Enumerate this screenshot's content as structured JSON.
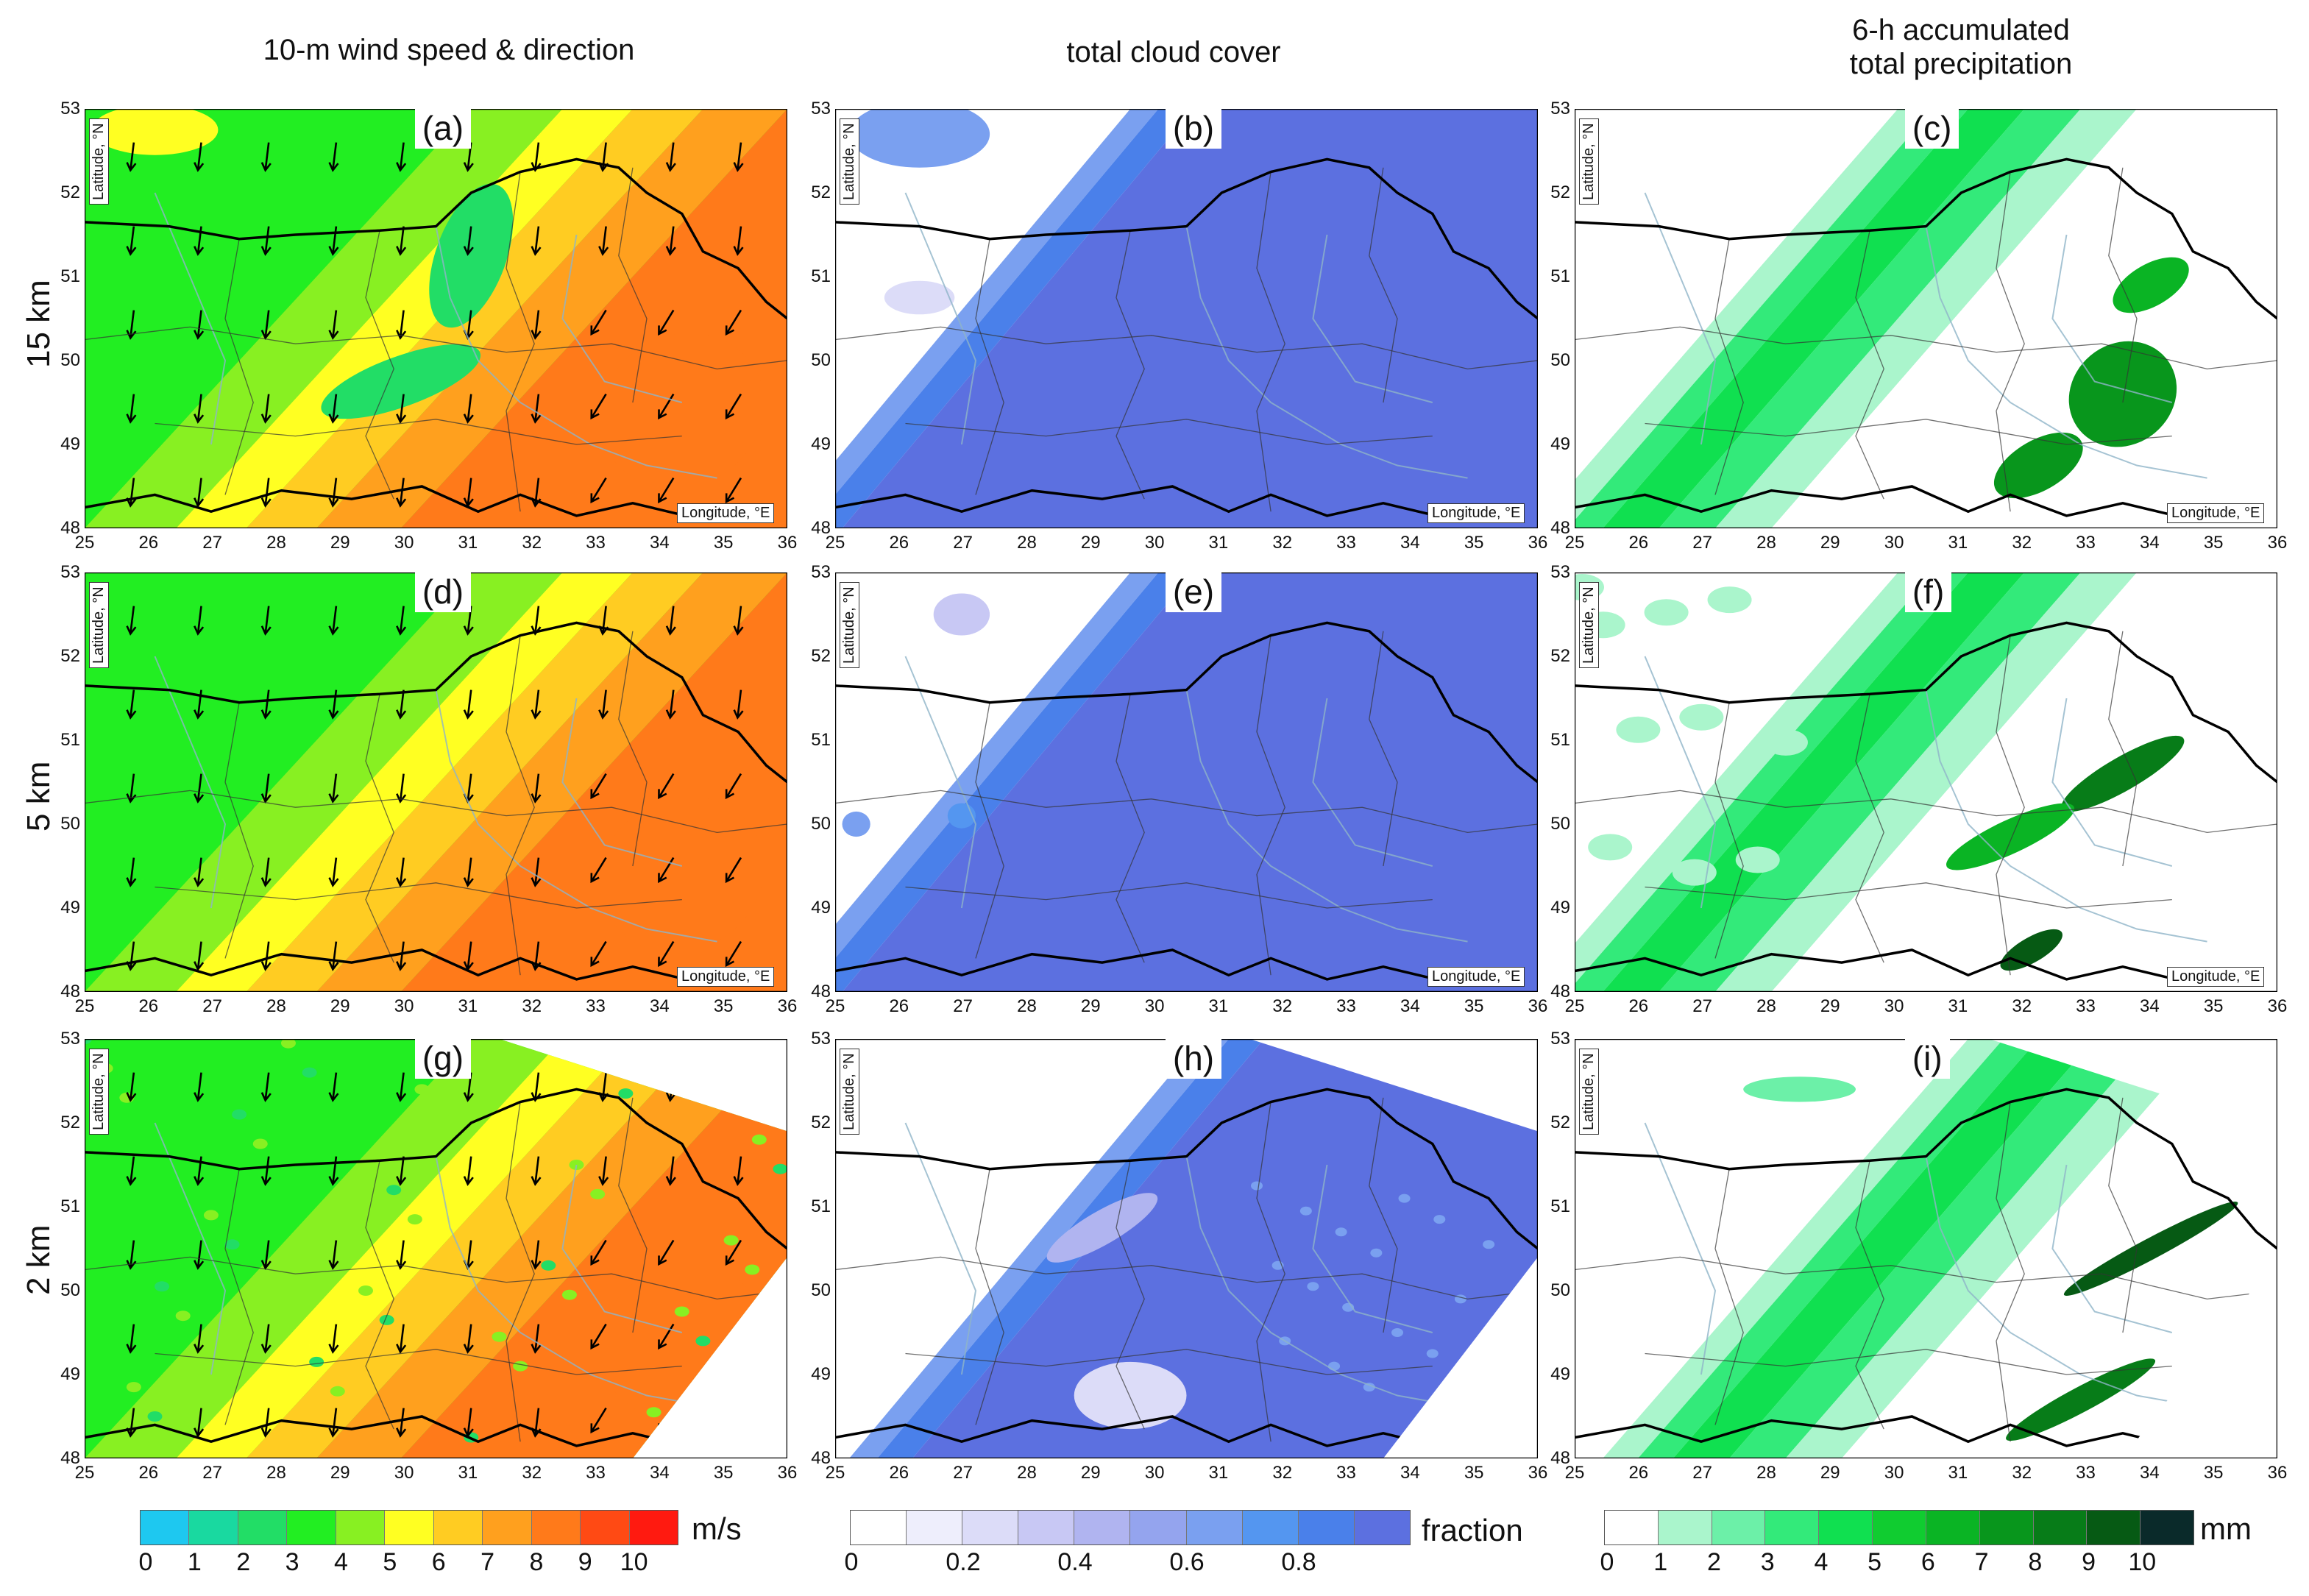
{
  "columns": [
    {
      "title": "10-m wind speed & direction"
    },
    {
      "title": "total cloud cover"
    },
    {
      "title_line1": "6-h accumulated",
      "title_line2": "total precipitation"
    }
  ],
  "rows": [
    "15 km",
    "5 km",
    "2 km"
  ],
  "panels": [
    {
      "label": "(a)",
      "var": "wind",
      "res": "15 km"
    },
    {
      "label": "(b)",
      "var": "cloud",
      "res": "15 km"
    },
    {
      "label": "(c)",
      "var": "precip",
      "res": "15 km"
    },
    {
      "label": "(d)",
      "var": "wind",
      "res": "5 km"
    },
    {
      "label": "(e)",
      "var": "cloud",
      "res": "5 km"
    },
    {
      "label": "(f)",
      "var": "precip",
      "res": "5 km"
    },
    {
      "label": "(g)",
      "var": "wind",
      "res": "2 km"
    },
    {
      "label": "(h)",
      "var": "cloud",
      "res": "2 km"
    },
    {
      "label": "(i)",
      "var": "precip",
      "res": "2 km"
    }
  ],
  "axes": {
    "xlabel": "Longitude, °E",
    "ylabel": "Latitude, °N",
    "xticks": [
      "25",
      "26",
      "27",
      "28",
      "29",
      "30",
      "31",
      "32",
      "33",
      "34",
      "35",
      "36"
    ],
    "yticks": [
      "48",
      "49",
      "50",
      "51",
      "52",
      "53"
    ]
  },
  "colorbars": {
    "wind": {
      "unit": "m/s",
      "ticks": [
        "0",
        "1",
        "2",
        "3",
        "4",
        "5",
        "6",
        "7",
        "8",
        "9",
        "10"
      ],
      "colors": [
        "#1ec8f0",
        "#19d9a0",
        "#22dd66",
        "#22ee22",
        "#88f022",
        "#ffff22",
        "#ffcc22",
        "#ffa01e",
        "#ff7a1a",
        "#ff4a14",
        "#ff1a10"
      ]
    },
    "cloud": {
      "unit": "fraction",
      "ticks": [
        "0",
        "0.2",
        "0.4",
        "0.6",
        "0.8"
      ],
      "colors": [
        "#ffffff",
        "#eeeefc",
        "#dcdcf8",
        "#c8c8f4",
        "#b0b4f0",
        "#94a4ee",
        "#7aa0f0",
        "#5496f0",
        "#4a80ea",
        "#5c70e0"
      ]
    },
    "precip": {
      "unit": "mm",
      "ticks": [
        "0",
        "1",
        "2",
        "3",
        "4",
        "5",
        "6",
        "7",
        "8",
        "9",
        "10"
      ],
      "colors": [
        "#ffffff",
        "#aaf5cc",
        "#6cf0a8",
        "#33ea7a",
        "#10e050",
        "#10cc30",
        "#0ab424",
        "#08961c",
        "#077c18",
        "#065a14",
        "#0a2a2a"
      ]
    }
  }
}
